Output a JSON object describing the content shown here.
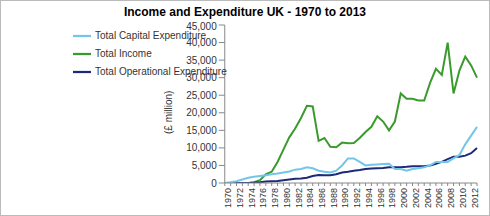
{
  "chart_data": {
    "type": "line",
    "title": "Income and Expenditure UK - 1970 to 2013",
    "y_label": "(£ million)",
    "categories": [
      "1970",
      null,
      "1972",
      null,
      "1974",
      null,
      "1976",
      null,
      "1978",
      null,
      "1980",
      null,
      "1982",
      null,
      "1984",
      null,
      "1986",
      null,
      "1988",
      null,
      "1990",
      null,
      "1992",
      null,
      "1994",
      null,
      "1996",
      null,
      "1998",
      null,
      "2000",
      null,
      "2002",
      null,
      "2004",
      null,
      "2006",
      null,
      "2008",
      null,
      "2010",
      null,
      "2012",
      null
    ],
    "series": [
      {
        "name": "Total Income",
        "color": "#3b9a2e",
        "values": [
          0,
          0,
          0,
          0,
          0,
          200,
          800,
          2500,
          3200,
          6000,
          9500,
          13000,
          15500,
          18500,
          22000,
          21800,
          12000,
          12800,
          10300,
          10200,
          11500,
          11300,
          11400,
          12800,
          14500,
          16000,
          19000,
          17500,
          15000,
          17500,
          25500,
          24000,
          24000,
          23500,
          23500,
          28500,
          32500,
          30800,
          40000,
          25500,
          32000,
          36000,
          33500,
          30000
        ]
      },
      {
        "name": "Total Operational Expenditure",
        "color": "#1c2a78",
        "values": [
          0,
          0,
          0,
          0,
          0,
          100,
          200,
          400,
          500,
          600,
          800,
          1000,
          1200,
          1300,
          1500,
          2000,
          2300,
          2200,
          2200,
          2500,
          3000,
          3200,
          3500,
          3700,
          4000,
          4100,
          4200,
          4300,
          4500,
          4500,
          4500,
          4600,
          4800,
          4800,
          4800,
          5000,
          5500,
          6000,
          6800,
          7500,
          7500,
          7800,
          8500,
          10000
        ]
      },
      {
        "name": "Total Capital Expenditure",
        "color": "#72c6ea",
        "values": [
          0,
          200,
          500,
          1000,
          1500,
          1800,
          2000,
          2200,
          2500,
          2700,
          3000,
          3300,
          3800,
          4000,
          4500,
          4200,
          3500,
          3200,
          3000,
          3500,
          5000,
          7000,
          7000,
          6000,
          5000,
          5200,
          5300,
          5400,
          5500,
          4000,
          4000,
          3500,
          4000,
          4200,
          4500,
          5000,
          6000,
          6000,
          6000,
          7000,
          8000,
          11000,
          13500,
          16000
        ]
      }
    ],
    "ylim": [
      0,
      45000
    ],
    "yticks": [
      0,
      {
        "value": 5000,
        "label": "5,000"
      },
      {
        "value": 10000,
        "label": "10,000"
      },
      {
        "value": 15000,
        "label": "15,000"
      },
      {
        "value": 20000,
        "label": "20,000"
      },
      {
        "value": 25000,
        "label": "25,000"
      },
      {
        "value": 30000,
        "label": "30,000"
      },
      {
        "value": 35000,
        "label": "35,000"
      },
      {
        "value": 40000,
        "label": "40,000"
      },
      {
        "value": 45000,
        "label": "45,000"
      }
    ],
    "grid": false,
    "legend": "top-left"
  }
}
